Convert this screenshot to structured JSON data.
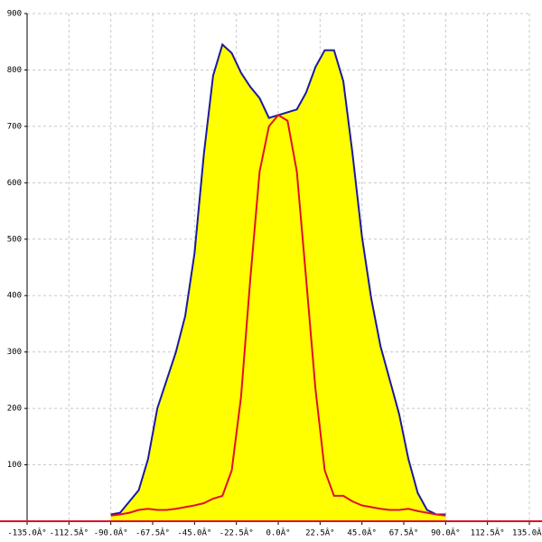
{
  "chart_data": {
    "type": "area-line",
    "x": [
      -90,
      -85,
      -80,
      -75,
      -70,
      -65,
      -60,
      -55,
      -50,
      -45,
      -40,
      -35,
      -30,
      -25,
      -20,
      -15,
      -10,
      -5,
      0,
      5,
      10,
      15,
      20,
      25,
      30,
      35,
      40,
      45,
      50,
      55,
      60,
      65,
      70,
      75,
      80,
      85,
      90
    ],
    "series": [
      {
        "color": "#1a1aa0",
        "fill": "#ffff00",
        "values": [
          12,
          15,
          35,
          55,
          110,
          200,
          250,
          300,
          364,
          475,
          650,
          790,
          845,
          830,
          795,
          770,
          750,
          715,
          720,
          725,
          730,
          760,
          805,
          835,
          835,
          780,
          650,
          505,
          395,
          310,
          250,
          190,
          110,
          50,
          20,
          12,
          12
        ]
      },
      {
        "color": "#e0102a",
        "values": [
          10,
          12,
          15,
          20,
          22,
          20,
          20,
          22,
          25,
          28,
          32,
          40,
          45,
          90,
          220,
          430,
          620,
          700,
          720,
          710,
          620,
          430,
          235,
          90,
          45,
          45,
          35,
          28,
          25,
          22,
          20,
          20,
          22,
          18,
          15,
          12,
          10
        ]
      }
    ],
    "xlim": [
      -135,
      135
    ],
    "ylim": [
      0,
      900
    ],
    "xticks": [
      {
        "value": -135,
        "label": "-135.0Â°"
      },
      {
        "value": -112.5,
        "label": "-112.5Â°"
      },
      {
        "value": -90,
        "label": "-90.0Â°"
      },
      {
        "value": -67.5,
        "label": "-67.5Â°"
      },
      {
        "value": -45,
        "label": "-45.0Â°"
      },
      {
        "value": -22.5,
        "label": "-22.5Â°"
      },
      {
        "value": 0,
        "label": "0.0Â°"
      },
      {
        "value": 22.5,
        "label": "22.5Â°"
      },
      {
        "value": 45,
        "label": "45.0Â°"
      },
      {
        "value": 67.5,
        "label": "67.5Â°"
      },
      {
        "value": 90,
        "label": "90.0Â°"
      },
      {
        "value": 112.5,
        "label": "112.5Â°"
      },
      {
        "value": 135,
        "label": "135.0Â°"
      }
    ],
    "yticks": [
      100,
      200,
      300,
      400,
      500,
      600,
      700,
      800,
      900
    ],
    "grid": true
  }
}
